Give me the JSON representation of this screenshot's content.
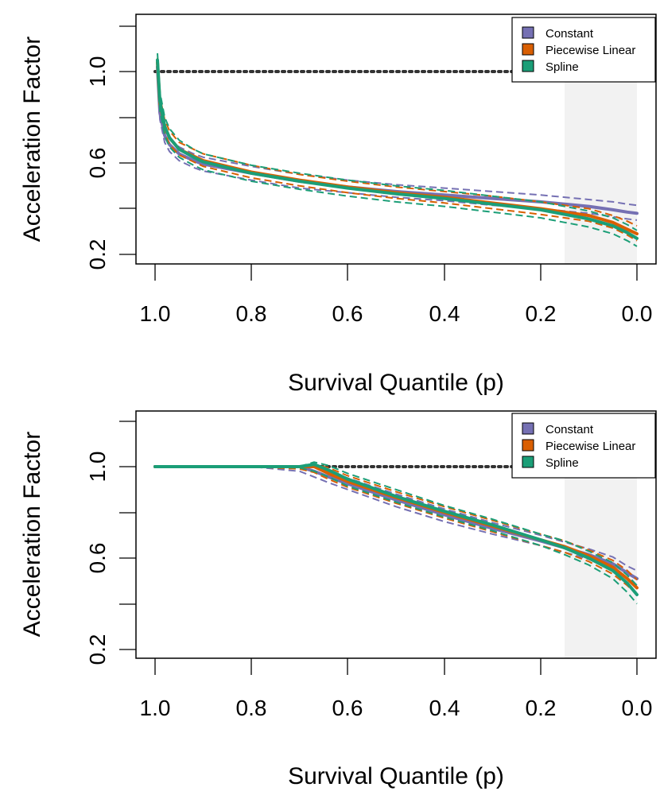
{
  "colors": {
    "constant": "#7570b3",
    "piecewise": "#d95f02",
    "spline": "#1b9e77",
    "reference": "#333333",
    "shade": "#f2f2f2"
  },
  "chart_data": [
    {
      "type": "line",
      "panel": "top",
      "xlabel": "Survival Quantile (p)",
      "ylabel": "Acceleration Factor",
      "xlim": [
        1.0,
        0.0
      ],
      "ylim": [
        0.2,
        1.2
      ],
      "x_ticks": [
        "1.0",
        "0.8",
        "0.6",
        "0.4",
        "0.2",
        "0.0"
      ],
      "y_ticks": [
        "0.2",
        "0.6",
        "1.0"
      ],
      "shaded_region": [
        0.15,
        0.0
      ],
      "reference_line": {
        "y": 1.0,
        "x_range": [
          1.0,
          0.15
        ],
        "style": "dotted"
      },
      "legend": {
        "position": "top-right",
        "entries": [
          "Constant",
          "Piecewise Linear",
          "Spline"
        ]
      },
      "x": [
        0.995,
        0.99,
        0.98,
        0.97,
        0.95,
        0.92,
        0.9,
        0.85,
        0.8,
        0.7,
        0.6,
        0.5,
        0.4,
        0.3,
        0.2,
        0.15,
        0.1,
        0.05,
        0.02,
        0.0
      ],
      "series": [
        {
          "name": "Constant",
          "key": "constant",
          "values": [
            1.02,
            0.82,
            0.72,
            0.68,
            0.64,
            0.61,
            0.595,
            0.575,
            0.555,
            0.52,
            0.495,
            0.475,
            0.46,
            0.445,
            0.43,
            0.42,
            0.41,
            0.395,
            0.385,
            0.38
          ],
          "lower": [
            1.0,
            0.79,
            0.69,
            0.65,
            0.61,
            0.58,
            0.565,
            0.545,
            0.525,
            0.49,
            0.47,
            0.45,
            0.435,
            0.415,
            0.4,
            0.39,
            0.38,
            0.365,
            0.355,
            0.35
          ],
          "upper": [
            1.04,
            0.85,
            0.75,
            0.71,
            0.67,
            0.64,
            0.625,
            0.605,
            0.585,
            0.55,
            0.525,
            0.505,
            0.49,
            0.475,
            0.46,
            0.45,
            0.44,
            0.43,
            0.42,
            0.415
          ]
        },
        {
          "name": "Piecewise Linear",
          "key": "piecewise",
          "values": [
            1.04,
            0.86,
            0.76,
            0.71,
            0.66,
            0.63,
            0.61,
            0.585,
            0.56,
            0.525,
            0.495,
            0.47,
            0.45,
            0.425,
            0.4,
            0.385,
            0.37,
            0.34,
            0.31,
            0.29
          ],
          "lower": [
            1.0,
            0.83,
            0.73,
            0.68,
            0.635,
            0.605,
            0.585,
            0.56,
            0.535,
            0.5,
            0.47,
            0.445,
            0.425,
            0.4,
            0.375,
            0.36,
            0.345,
            0.315,
            0.285,
            0.26
          ],
          "upper": [
            1.06,
            0.89,
            0.79,
            0.74,
            0.69,
            0.66,
            0.64,
            0.615,
            0.59,
            0.55,
            0.52,
            0.495,
            0.475,
            0.455,
            0.43,
            0.415,
            0.4,
            0.37,
            0.345,
            0.325
          ]
        },
        {
          "name": "Spline",
          "key": "spline",
          "values": [
            1.05,
            0.87,
            0.76,
            0.71,
            0.66,
            0.625,
            0.605,
            0.58,
            0.555,
            0.52,
            0.49,
            0.465,
            0.445,
            0.42,
            0.395,
            0.375,
            0.355,
            0.325,
            0.295,
            0.27
          ],
          "lower": [
            1.0,
            0.83,
            0.72,
            0.67,
            0.625,
            0.59,
            0.57,
            0.545,
            0.52,
            0.485,
            0.455,
            0.43,
            0.41,
            0.385,
            0.36,
            0.34,
            0.32,
            0.29,
            0.26,
            0.235
          ],
          "upper": [
            1.08,
            0.91,
            0.8,
            0.75,
            0.7,
            0.66,
            0.64,
            0.615,
            0.59,
            0.555,
            0.525,
            0.5,
            0.48,
            0.455,
            0.43,
            0.41,
            0.39,
            0.36,
            0.33,
            0.305
          ]
        }
      ]
    },
    {
      "type": "line",
      "panel": "bottom",
      "xlabel": "Survival Quantile (p)",
      "ylabel": "Acceleration Factor",
      "xlim": [
        1.0,
        0.0
      ],
      "ylim": [
        0.2,
        1.2
      ],
      "x_ticks": [
        "1.0",
        "0.8",
        "0.6",
        "0.4",
        "0.2",
        "0.0"
      ],
      "y_ticks": [
        "0.2",
        "0.6",
        "1.0"
      ],
      "shaded_region": [
        0.15,
        0.0
      ],
      "reference_line": {
        "y": 1.0,
        "x_range": [
          1.0,
          0.15
        ],
        "style": "dotted"
      },
      "legend": {
        "position": "top-right",
        "entries": [
          "Constant",
          "Piecewise Linear",
          "Spline"
        ]
      },
      "x": [
        1.0,
        0.8,
        0.7,
        0.67,
        0.64,
        0.6,
        0.5,
        0.4,
        0.3,
        0.2,
        0.15,
        0.1,
        0.05,
        0.02,
        0.0
      ],
      "series": [
        {
          "name": "Constant",
          "key": "constant",
          "values": [
            1.0,
            1.0,
            1.0,
            0.98,
            0.955,
            0.925,
            0.855,
            0.79,
            0.73,
            0.675,
            0.645,
            0.615,
            0.575,
            0.535,
            0.51
          ],
          "lower": [
            1.0,
            1.0,
            0.98,
            0.955,
            0.93,
            0.9,
            0.825,
            0.76,
            0.705,
            0.655,
            0.625,
            0.595,
            0.55,
            0.51,
            0.48
          ],
          "upper": [
            1.0,
            1.0,
            1.0,
            1.0,
            0.98,
            0.95,
            0.88,
            0.815,
            0.755,
            0.7,
            0.67,
            0.64,
            0.605,
            0.565,
            0.545
          ]
        },
        {
          "name": "Piecewise Linear",
          "key": "piecewise",
          "values": [
            1.0,
            1.0,
            1.0,
            1.0,
            0.97,
            0.935,
            0.865,
            0.8,
            0.74,
            0.68,
            0.65,
            0.61,
            0.56,
            0.51,
            0.47
          ],
          "lower": [
            1.0,
            1.0,
            0.99,
            0.975,
            0.945,
            0.91,
            0.84,
            0.775,
            0.715,
            0.655,
            0.625,
            0.585,
            0.53,
            0.48,
            0.44
          ],
          "upper": [
            1.0,
            1.0,
            1.0,
            1.01,
            0.995,
            0.96,
            0.89,
            0.825,
            0.765,
            0.705,
            0.675,
            0.635,
            0.59,
            0.545,
            0.505
          ]
        },
        {
          "name": "Spline",
          "key": "spline",
          "values": [
            1.0,
            1.0,
            1.0,
            1.01,
            0.985,
            0.945,
            0.87,
            0.805,
            0.745,
            0.68,
            0.645,
            0.6,
            0.545,
            0.49,
            0.44
          ],
          "lower": [
            1.0,
            1.0,
            0.995,
            0.98,
            0.955,
            0.915,
            0.845,
            0.78,
            0.72,
            0.655,
            0.615,
            0.57,
            0.51,
            0.45,
            0.4
          ],
          "upper": [
            1.0,
            1.0,
            1.0,
            1.02,
            1.005,
            0.97,
            0.9,
            0.83,
            0.77,
            0.705,
            0.675,
            0.63,
            0.58,
            0.525,
            0.48
          ]
        }
      ]
    }
  ]
}
